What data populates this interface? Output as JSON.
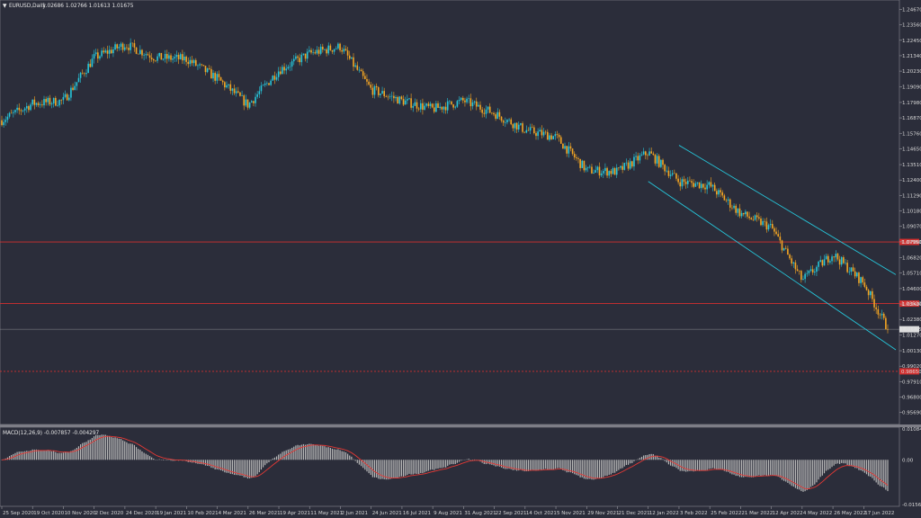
{
  "window": {
    "symbol_title": "EURUSD,Daily",
    "ohlc_readout": "1.02686 1.02766 1.01613 1.01675",
    "dropdown_glyph": "▼"
  },
  "colors": {
    "background": "#2b2d3a",
    "bull_candle": "#26c6da",
    "bear_candle": "#f5a623",
    "channel": "#26c6da",
    "level": "#d32f2f",
    "macd_hist": "#b9b9b9",
    "macd_signal": "#e53935",
    "axis_text": "#d7d7d7"
  },
  "chart_data": [
    {
      "type": "candlestick",
      "title": "EURUSD,Daily",
      "ylim": [
        0.9509,
        1.2515
      ],
      "y_ticks": [
        "1.24670",
        "1.23560",
        "1.22450",
        "1.21340",
        "1.20230",
        "1.19090",
        "1.17980",
        "1.16870",
        "1.15760",
        "1.14650",
        "1.13510",
        "1.12400",
        "1.11290",
        "1.10180",
        "1.09070",
        "1.07960",
        "1.06820",
        "1.05710",
        "1.04600",
        "1.03490",
        "1.02380",
        "1.01270",
        "1.00130",
        "0.99020",
        "0.97910",
        "0.96800",
        "0.95690"
      ],
      "x_dates": [
        "25 Sep 2020",
        "19 Oct 2020",
        "10 Nov 2020",
        "2 Dec 2020",
        "24 Dec 2020",
        "19 Jan 2021",
        "10 Feb 2021",
        "4 Mar 2021",
        "26 Mar 2021",
        "19 Apr 2021",
        "11 May 2021",
        "2 Jun 2021",
        "24 Jun 2021",
        "16 Jul 2021",
        "9 Aug 2021",
        "31 Aug 2021",
        "22 Sep 2021",
        "14 Oct 2021",
        "5 Nov 2021",
        "29 Nov 2021",
        "21 Dec 2021",
        "12 Jan 2022",
        "3 Feb 2022",
        "25 Feb 2022",
        "21 Mar 2022",
        "12 Apr 2022",
        "4 May 2022",
        "26 May 2022",
        "17 Jun 2022"
      ],
      "close_path": [
        [
          "25 Sep 2020",
          1.167
        ],
        [
          "19 Oct 2020",
          1.179
        ],
        [
          "10 Nov 2020",
          1.181
        ],
        [
          "2 Dec 2020",
          1.212
        ],
        [
          "24 Dec 2020",
          1.2215
        ],
        [
          "19 Jan 2021",
          1.212
        ],
        [
          "10 Feb 2021",
          1.211
        ],
        [
          "4 Mar 2021",
          1.197
        ],
        [
          "26 Mar 2021",
          1.178
        ],
        [
          "19 Apr 2021",
          1.203
        ],
        [
          "11 May 2021",
          1.215
        ],
        [
          "2 Jun 2021",
          1.22
        ],
        [
          "24 Jun 2021",
          1.189
        ],
        [
          "16 Jul 2021",
          1.181
        ],
        [
          "9 Aug 2021",
          1.175
        ],
        [
          "31 Aug 2021",
          1.181
        ],
        [
          "22 Sep 2021",
          1.172
        ],
        [
          "14 Oct 2021",
          1.16
        ],
        [
          "5 Nov 2021",
          1.155
        ],
        [
          "29 Nov 2021",
          1.131
        ],
        [
          "21 Dec 2021",
          1.13
        ],
        [
          "12 Jan 2022",
          1.144
        ],
        [
          "3 Feb 2022",
          1.123
        ],
        [
          "25 Feb 2022",
          1.12
        ],
        [
          "21 Mar 2022",
          1.1
        ],
        [
          "12 Apr 2022",
          1.09
        ],
        [
          "4 May 2022",
          1.052
        ],
        [
          "26 May 2022",
          1.071
        ],
        [
          "17 Jun 2022",
          1.05
        ],
        [
          "end",
          1.0168
        ]
      ],
      "levels": [
        {
          "price": 1.0795,
          "label": "1.07950",
          "style": "solid"
        },
        {
          "price": 1.0352,
          "label": "1.03520",
          "style": "solid"
        },
        {
          "price": 0.9865,
          "label": "0.98650",
          "style": "dashed"
        }
      ],
      "current_price": {
        "price": 1.01675,
        "label": "1.01675"
      },
      "channel": {
        "upper": [
          [
            "3 Feb 2022",
            1.149
          ],
          [
            "end",
            1.056
          ]
        ],
        "lower": [
          [
            "12 Jan 2022",
            1.123
          ],
          [
            "end",
            1.002
          ]
        ]
      }
    },
    {
      "type": "bar",
      "title": "MACD(12,26,9) -0.007857 -0.004297",
      "series": [
        {
          "name": "MACD(12,26,9)"
        }
      ],
      "ylim": [
        -0.01573,
        0.01085
      ],
      "y_ticks": [
        "0.010847",
        "0.00",
        "-0.015673"
      ],
      "legend_position": "top-left"
    }
  ]
}
